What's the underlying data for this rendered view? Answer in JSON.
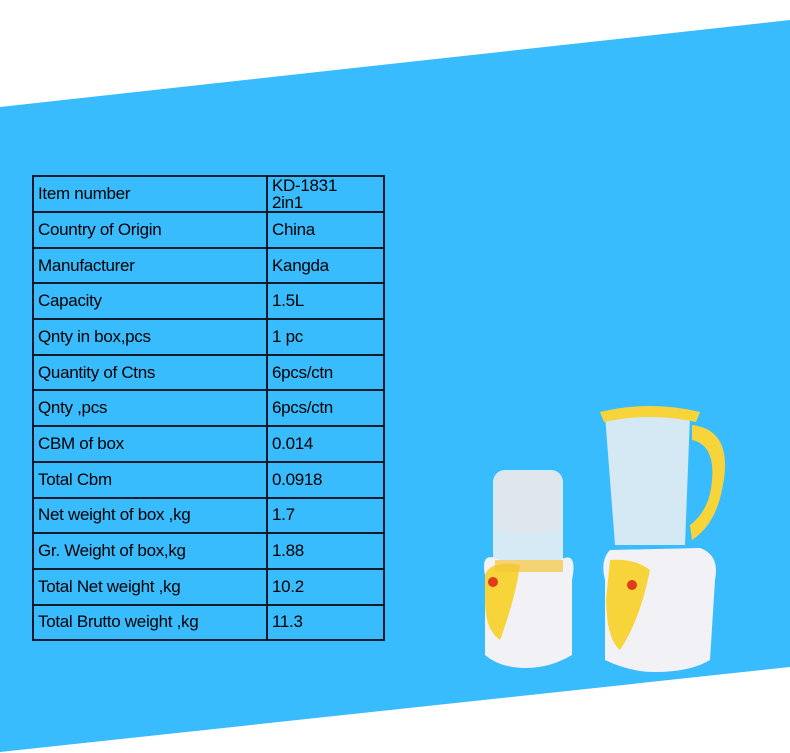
{
  "colors": {
    "background_band": "#38bcfd",
    "page": "#ffffff",
    "table_border": "#0a1a2a",
    "product_yellow": "#f7d43a",
    "product_white": "#f2f2f6"
  },
  "spec_table": [
    {
      "label": "Item number",
      "value": "KD-1831 2in1"
    },
    {
      "label": "Country of Origin",
      "value": "China"
    },
    {
      "label": "Manufacturer",
      "value": "Kangda"
    },
    {
      "label": "Capacity",
      "value": "1.5L"
    },
    {
      "label": "Qnty in box,pcs",
      "value": "1 pc"
    },
    {
      "label": "Quantity of Ctns",
      "value": "6pcs/ctn"
    },
    {
      "label": "Qnty ,pcs",
      "value": "6pcs/ctn"
    },
    {
      "label": "CBM of box",
      "value": "0.014"
    },
    {
      "label": "Total Cbm",
      "value": "0.0918"
    },
    {
      "label": "Net weight of box ,kg",
      "value": "1.7"
    },
    {
      "label": "Gr. Weight of box,kg",
      "value": "1.88"
    },
    {
      "label": "Total Net weight ,kg",
      "value": "10.2"
    },
    {
      "label": "Total Brutto weight ,kg",
      "value": "11.3"
    }
  ],
  "product_image": "blender-2in1"
}
